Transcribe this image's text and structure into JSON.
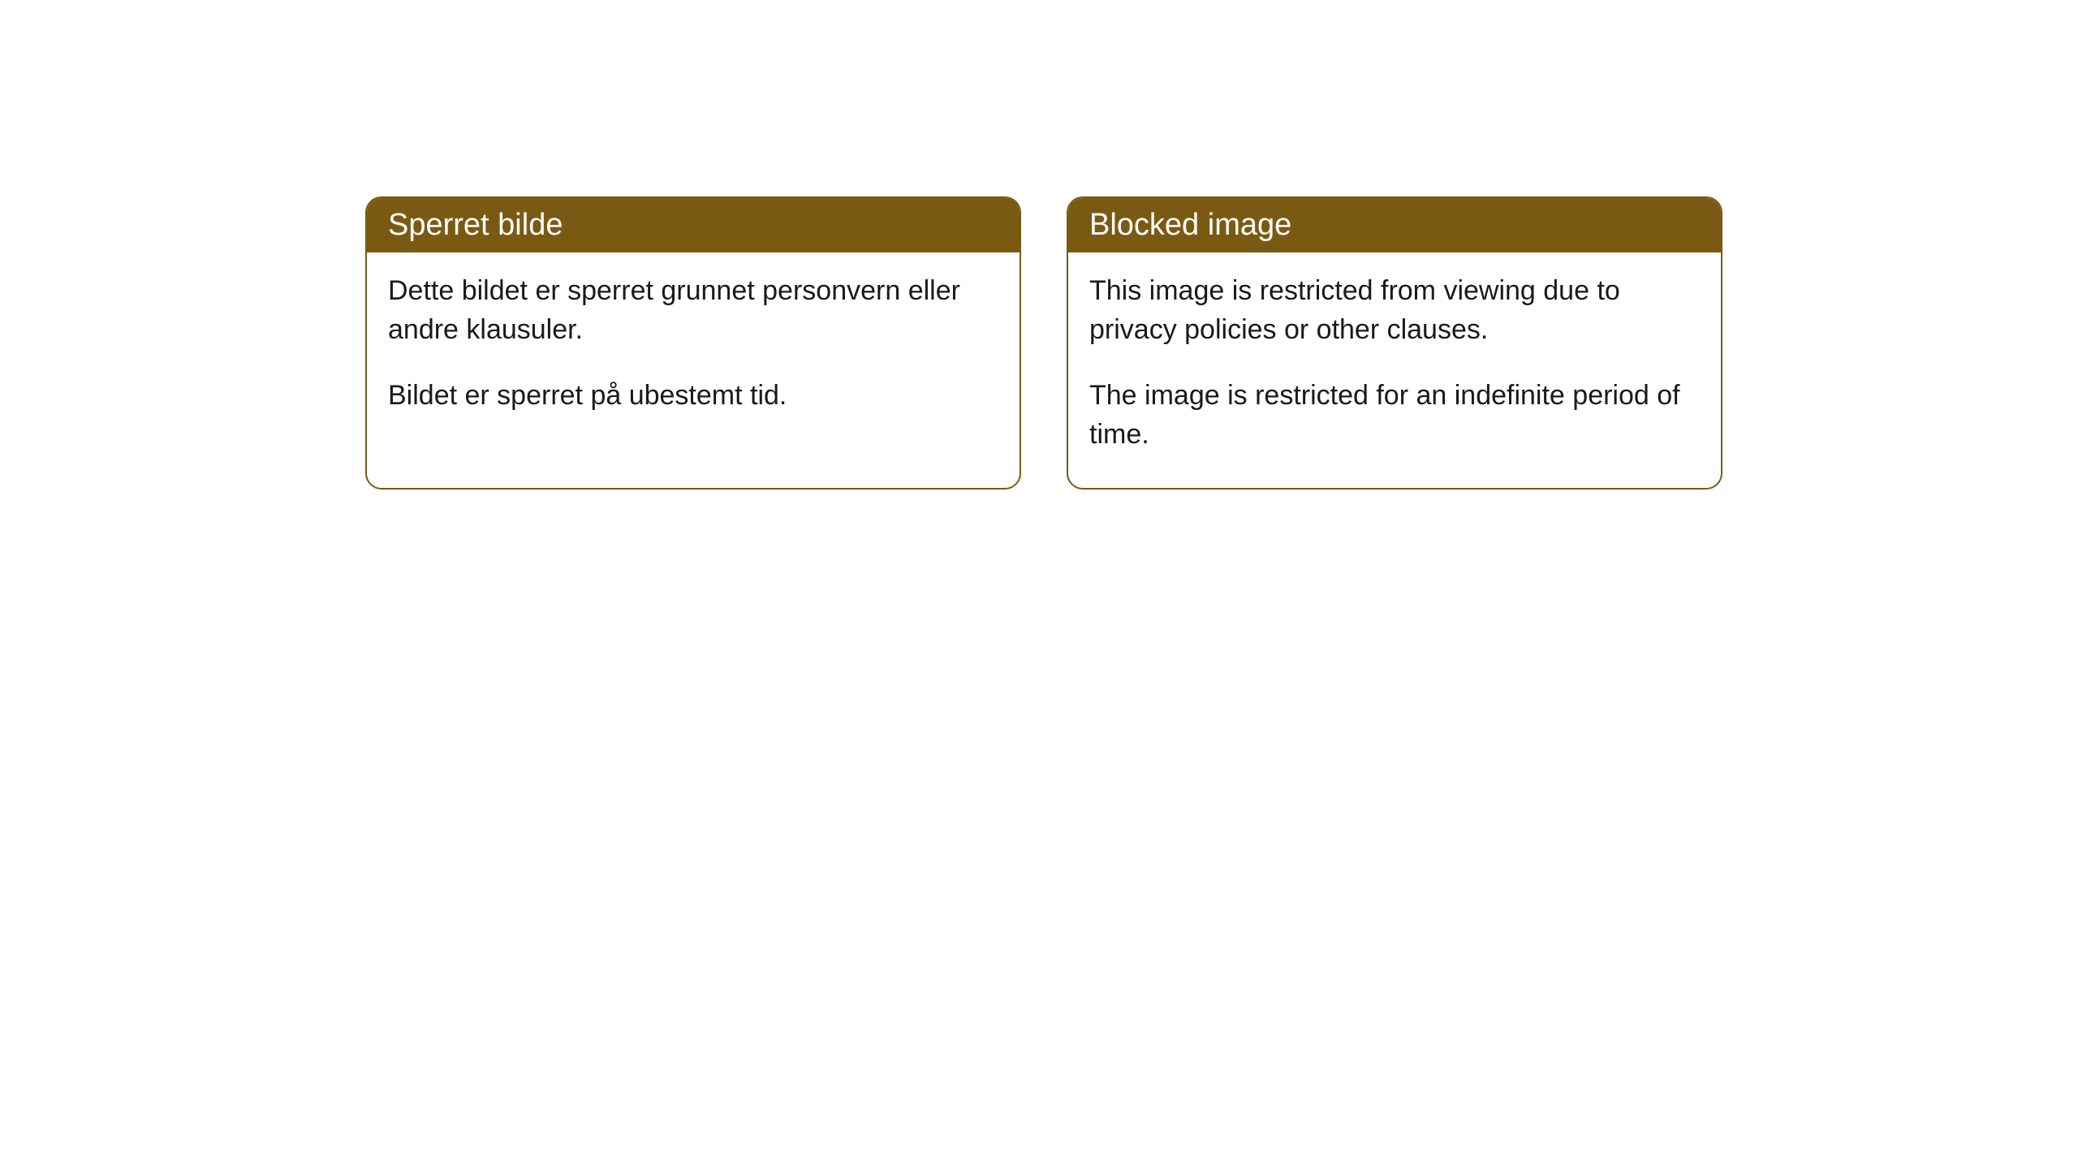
{
  "cards": [
    {
      "title": "Sperret bilde",
      "paragraph1": "Dette bildet er sperret grunnet personvern eller andre klausuler.",
      "paragraph2": "Bildet er sperret på ubestemt tid."
    },
    {
      "title": "Blocked image",
      "paragraph1": "This image is restricted from viewing due to privacy policies or other clauses.",
      "paragraph2": "The image is restricted for an indefinite period of time."
    }
  ],
  "style": {
    "header_bg_color": "#7a5a13",
    "header_text_color": "#ffffff",
    "border_color": "#7a5a13",
    "body_bg_color": "#ffffff",
    "body_text_color": "#1a1a1a",
    "border_radius": 20,
    "title_fontsize": 38,
    "body_fontsize": 34
  }
}
